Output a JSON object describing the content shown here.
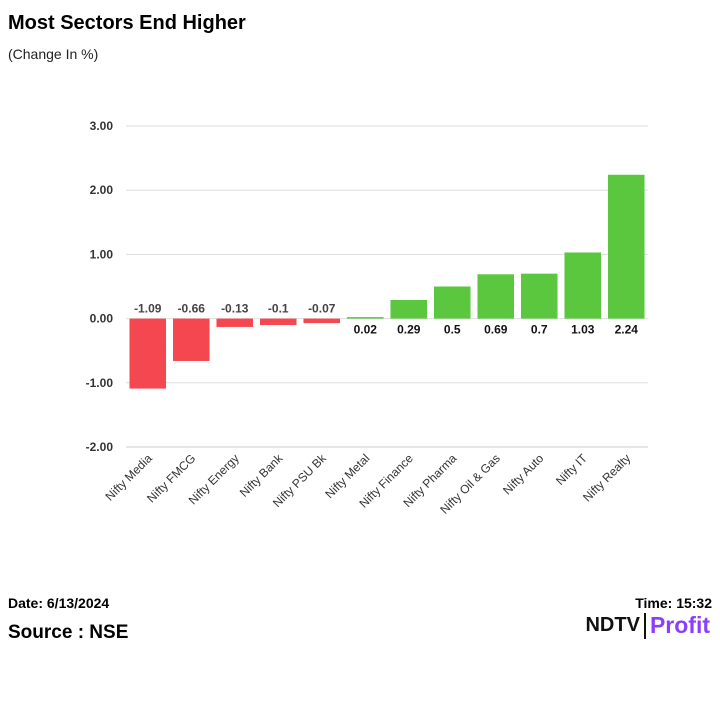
{
  "title": "Most Sectors End Higher",
  "subtitle": "(Change In %)",
  "footer": {
    "date": "Date: 6/13/2024",
    "time": "Time: 15:32",
    "source": "Source : NSE"
  },
  "logo": {
    "left": "NDTV",
    "right": "Profit"
  },
  "colors": {
    "positive": "#5ac73e",
    "negative": "#f5474f",
    "grid": "#dddddd",
    "logo_accent": "#8a3ffc"
  },
  "chart_data": {
    "type": "bar",
    "title": "Most Sectors End Higher",
    "subtitle": "(Change In %)",
    "xlabel": "",
    "ylabel": "",
    "ylim": [
      -2,
      3
    ],
    "yticks": [
      3,
      2,
      1,
      0,
      -1,
      -2
    ],
    "ytick_labels": [
      "3.00",
      "2.00",
      "1.00",
      "0.00",
      "-1.00",
      "-2.00"
    ],
    "grid": true,
    "categories": [
      "Nifty Media",
      "Nifty FMCG",
      "Nifty Energy",
      "Nifty Bank",
      "Nifty PSU Bk",
      "Nifty Metal",
      "Nifty Finance",
      "Nifty Pharma",
      "Nifty Oil & Gas",
      "Nifty Auto",
      "Nifty IT",
      "Nifty Realty"
    ],
    "values": [
      -1.09,
      -0.66,
      -0.13,
      -0.1,
      -0.07,
      0.02,
      0.29,
      0.5,
      0.69,
      0.7,
      1.03,
      2.24
    ],
    "labels": [
      "-1.09",
      "-0.66",
      "-0.13",
      "-0.1",
      "-0.07",
      "0.02",
      "0.29",
      "0.5",
      "0.69",
      "0.7",
      "1.03",
      "2.24"
    ]
  }
}
